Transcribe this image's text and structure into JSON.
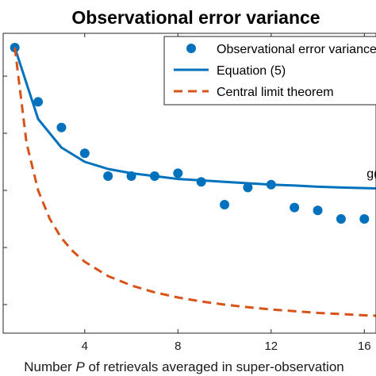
{
  "chart_data": {
    "type": "line",
    "title": "Observational error variance",
    "xlabel_parts": [
      "Number ",
      "P",
      " of retrievals averaged in super-observation"
    ],
    "ylabel": "",
    "xlim": [
      0.5,
      16.5
    ],
    "ylim": [
      0,
      1.05
    ],
    "x_ticks": [
      4,
      8,
      12,
      16
    ],
    "x_tick_labels": [
      "4",
      "8",
      "12",
      "16"
    ],
    "y_tick_values": [
      0.1,
      0.3,
      0.5,
      0.7,
      0.9
    ],
    "grid": false,
    "legend_placement": "top-right",
    "series": [
      {
        "name": "Observational error variance",
        "kind": "scatter",
        "color": "#0072BD",
        "x": [
          1,
          2,
          3,
          4,
          5,
          6,
          7,
          8,
          9,
          10,
          11,
          12,
          13,
          14,
          15,
          16
        ],
        "y": [
          1.0,
          0.81,
          0.72,
          0.63,
          0.55,
          0.55,
          0.55,
          0.56,
          0.53,
          0.45,
          0.51,
          0.52,
          0.44,
          0.43,
          0.4,
          0.4
        ]
      },
      {
        "name": "Equation (5)",
        "kind": "line",
        "color": "#0072BD",
        "x": [
          1,
          2,
          3,
          4,
          5,
          6,
          7,
          8,
          9,
          10,
          11,
          12,
          13,
          14,
          15,
          16,
          16.5
        ],
        "y": [
          1.0,
          0.75,
          0.65,
          0.6,
          0.575,
          0.56,
          0.55,
          0.54,
          0.535,
          0.53,
          0.525,
          0.52,
          0.517,
          0.513,
          0.51,
          0.508,
          0.507
        ]
      },
      {
        "name": "Central limit theorem",
        "kind": "dashed-line",
        "color": "#D95319",
        "x": [
          1,
          1.5,
          2,
          2.5,
          3,
          3.5,
          4,
          5,
          6,
          7,
          8,
          9,
          10,
          11,
          12,
          13,
          14,
          15,
          16,
          16.5
        ],
        "y": [
          1.0,
          0.667,
          0.5,
          0.4,
          0.333,
          0.286,
          0.25,
          0.2,
          0.167,
          0.143,
          0.125,
          0.111,
          0.1,
          0.091,
          0.083,
          0.077,
          0.071,
          0.067,
          0.0625,
          0.061
        ]
      }
    ],
    "annotations": [
      {
        "text": "g(P",
        "x": 16.1,
        "y": 0.545
      }
    ]
  }
}
